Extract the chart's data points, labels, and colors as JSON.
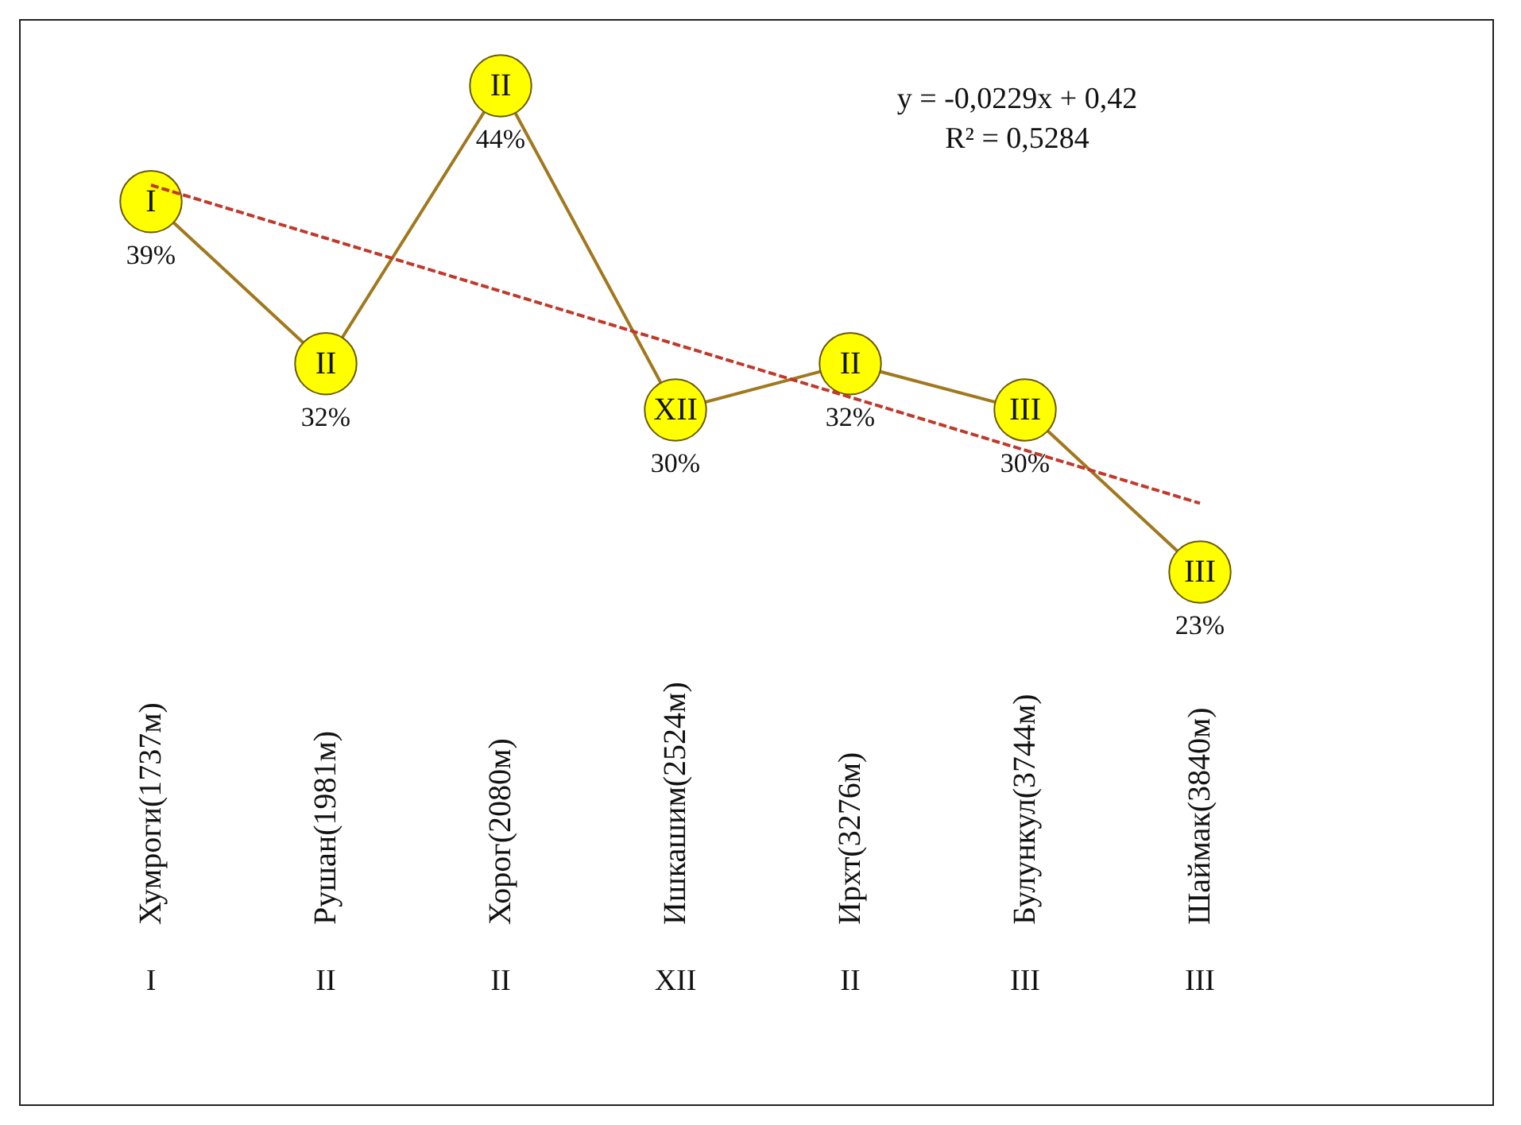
{
  "chart_data": {
    "type": "line",
    "categories": [
      "Хумроги(1737м)",
      "Рушан(1981м)",
      "Хорог(2080м)",
      "Ишкашим(2524м)",
      "Ирхт(3276м)",
      "Булункул(3744м)",
      "Шаймак(3840м)"
    ],
    "series": [
      {
        "color": "#a0781e",
        "colors": [
          "#ffff00",
          "#ffff00",
          "#ffff00",
          "#ffff00",
          "#ffff00",
          "#ffff00",
          "#ffff00"
        ],
        "marker": "circle",
        "line_style": "solid",
        "values": [
          39,
          32,
          44,
          30,
          32,
          30,
          23
        ],
        "value_labels": [
          "39%",
          "32%",
          "44%",
          "30%",
          "32%",
          "30%",
          "23%"
        ]
      },
      {
        "type": "line",
        "color": "#c0392b",
        "line_style": "dashed",
        "marker": "none",
        "values": [
          39.71,
          37.42,
          35.13,
          32.84,
          30.55,
          28.26,
          25.97
        ]
      }
    ],
    "annotations": [
      "y = -0,0229x + 0,42",
      "R² = 0,5284",
      {
        "text": "I",
        "x": "Хумроги(1737м)",
        "y": 39
      },
      {
        "text": "II",
        "x": "Рушан(1981м)",
        "y": 32
      },
      {
        "text": "II",
        "x": "Хорог(2080м)",
        "y": 44
      },
      {
        "text": "XII",
        "x": "Ишкашим(2524м)",
        "y": 30
      },
      {
        "text": "II",
        "x": "Ирхт(3276м)",
        "y": 32
      },
      {
        "text": "III",
        "x": "Булункул(3744м)",
        "y": 30
      },
      {
        "text": "III",
        "x": "Шаймак(3840м)",
        "y": 23
      },
      "I",
      "II",
      "II",
      "XII",
      "II",
      "III",
      "III"
    ]
  }
}
